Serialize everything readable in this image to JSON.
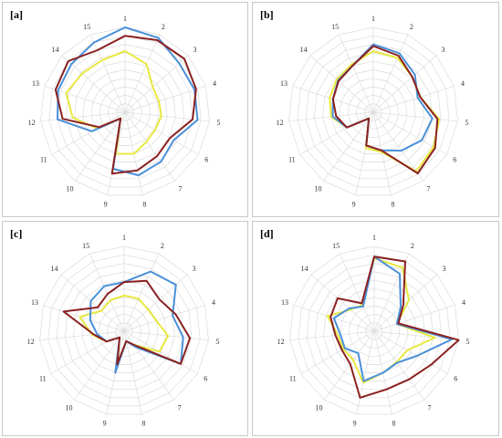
{
  "chart_data": [
    {
      "type": "radar",
      "panel_label": "[a]",
      "categories": [
        "1",
        "2",
        "3",
        "4",
        "5",
        "6",
        "7",
        "8",
        "9",
        "10",
        "11",
        "12",
        "13",
        "14",
        "15"
      ],
      "rmax": 10,
      "grid": true,
      "series": [
        {
          "color": "#4a90d9",
          "values": [
            10,
            9.6,
            8.6,
            8.6,
            8.6,
            6.6,
            7.2,
            7.6,
            6.8,
            0.9,
            4.5,
            8.0,
            8.3,
            8.5,
            9.0
          ]
        },
        {
          "color": "#8b2020",
          "values": [
            9.0,
            9.3,
            9.4,
            8.8,
            8.0,
            6.1,
            6.4,
            7.0,
            7.4,
            0.9,
            3.5,
            7.4,
            8.6,
            9.0,
            8.0
          ]
        },
        {
          "color": "#e8e840",
          "values": [
            7.2,
            6.2,
            4.4,
            4.2,
            4.3,
            4.1,
            4.3,
            5.0,
            5.0,
            0.9,
            3.8,
            6.2,
            7.3,
            6.8,
            6.7
          ]
        }
      ]
    },
    {
      "type": "radar",
      "panel_label": "[b]",
      "categories": [
        "1",
        "2",
        "3",
        "4",
        "5",
        "6",
        "7",
        "8",
        "9",
        "10",
        "11",
        "12",
        "13",
        "14",
        "15"
      ],
      "rmax": 10,
      "grid": true,
      "series": [
        {
          "color": "#4a90d9",
          "values": [
            8.0,
            7.6,
            6.6,
            5.5,
            7.0,
            6.6,
            5.6,
            4.6,
            4.0,
            0.9,
            3.6,
            4.8,
            5.0,
            5.6,
            6.0
          ]
        },
        {
          "color": "#8b2020",
          "values": [
            7.8,
            7.3,
            6.2,
            5.8,
            7.6,
            8.4,
            8.9,
            4.6,
            4.0,
            0.9,
            3.6,
            4.4,
            5.0,
            5.5,
            6.0
          ]
        },
        {
          "color": "#e8e840",
          "values": [
            7.2,
            7.0,
            6.2,
            5.8,
            7.8,
            8.2,
            8.6,
            4.8,
            4.3,
            0.9,
            3.6,
            5.0,
            5.4,
            5.8,
            6.2
          ]
        }
      ]
    },
    {
      "type": "radar",
      "panel_label": "[c]",
      "categories": [
        "1",
        "2",
        "3",
        "4",
        "5",
        "6",
        "7",
        "8",
        "9",
        "10",
        "11",
        "12",
        "13",
        "14",
        "15"
      ],
      "rmax": 10,
      "grid": true,
      "series": [
        {
          "color": "#4a90d9",
          "values": [
            5.8,
            7.7,
            8.2,
            6.0,
            7.0,
            7.7,
            2.3,
            1.2,
            5.0,
            0.9,
            2.4,
            3.2,
            4.2,
            5.3,
            5.8
          ]
        },
        {
          "color": "#8b2020",
          "values": [
            5.8,
            6.5,
            5.6,
            6.4,
            7.8,
            7.7,
            2.0,
            1.2,
            4.0,
            0.9,
            2.4,
            3.6,
            7.5,
            4.2,
            4.8
          ]
        },
        {
          "color": "#e8e840",
          "values": [
            4.2,
            4.2,
            3.8,
            4.0,
            5.2,
            4.8,
            2.0,
            1.2,
            4.0,
            0.9,
            2.4,
            3.8,
            5.5,
            3.6,
            4.0
          ]
        }
      ]
    },
    {
      "type": "radar",
      "panel_label": "[d]",
      "categories": [
        "1",
        "2",
        "3",
        "4",
        "5",
        "6",
        "7",
        "8",
        "9",
        "10",
        "11",
        "12",
        "13",
        "14",
        "15"
      ],
      "rmax": 10,
      "grid": true,
      "series": [
        {
          "color": "#4a90d9",
          "values": [
            8.8,
            7.4,
            4.2,
            2.8,
            9.2,
            5.8,
            4.6,
            5.0,
            6.0,
            3.2,
            4.0,
            4.0,
            5.0,
            4.0,
            3.2
          ]
        },
        {
          "color": "#8b2020",
          "values": [
            8.8,
            9.0,
            4.6,
            3.0,
            10.0,
            7.8,
            7.0,
            7.0,
            8.0,
            4.8,
            4.4,
            4.6,
            5.4,
            5.8,
            3.6
          ]
        },
        {
          "color": "#e8e840",
          "values": [
            8.6,
            8.2,
            5.5,
            2.8,
            7.2,
            4.5,
            4.5,
            5.0,
            6.2,
            4.2,
            4.2,
            4.3,
            5.8,
            3.8,
            3.4
          ]
        }
      ]
    }
  ]
}
